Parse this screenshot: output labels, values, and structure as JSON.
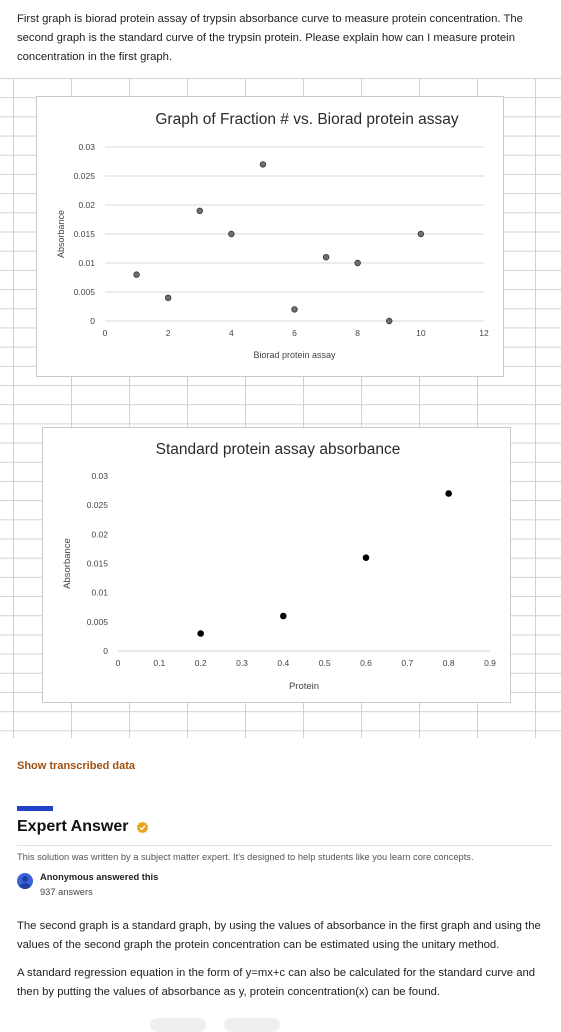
{
  "question": {
    "text": "First graph is biorad protein assay of trypsin absorbance curve to measure protein concentration. The second graph is the standard curve of the trypsin protein. Please explain how can I measure protein concentration in the first graph."
  },
  "chart_data": [
    {
      "type": "scatter",
      "title": "Graph of Fraction # vs. Biorad protein assay",
      "xlabel": "Biorad protein assay",
      "ylabel": "Absorbance",
      "xlim": [
        0,
        12
      ],
      "ylim": [
        0,
        0.03
      ],
      "x_ticks": [
        "0",
        "2",
        "4",
        "6",
        "8",
        "10",
        "12"
      ],
      "y_ticks": [
        "0",
        "0.005",
        "0.01",
        "0.015",
        "0.02",
        "0.025",
        "0.03"
      ],
      "grid": true,
      "marker_color": "#707070",
      "points": [
        {
          "x": 1,
          "y": 0.008
        },
        {
          "x": 2,
          "y": 0.004
        },
        {
          "x": 3,
          "y": 0.019
        },
        {
          "x": 4,
          "y": 0.015
        },
        {
          "x": 5,
          "y": 0.027
        },
        {
          "x": 6,
          "y": 0.002
        },
        {
          "x": 7,
          "y": 0.011
        },
        {
          "x": 8,
          "y": 0.01
        },
        {
          "x": 9,
          "y": 0.0
        },
        {
          "x": 10,
          "y": 0.015
        }
      ]
    },
    {
      "type": "scatter",
      "title": "Standard protein assay absorbance",
      "xlabel": "Protein",
      "ylabel": "Absorbance",
      "xlim": [
        0,
        0.9
      ],
      "ylim": [
        0,
        0.03
      ],
      "x_ticks": [
        "0",
        "0.1",
        "0.2",
        "0.3",
        "0.4",
        "0.5",
        "0.6",
        "0.7",
        "0.8",
        "0.9"
      ],
      "y_ticks": [
        "0",
        "0.005",
        "0.01",
        "0.015",
        "0.02",
        "0.025",
        "0.03"
      ],
      "grid": false,
      "marker_color": "#000000",
      "points": [
        {
          "x": 0.2,
          "y": 0.003
        },
        {
          "x": 0.4,
          "y": 0.006
        },
        {
          "x": 0.6,
          "y": 0.016
        },
        {
          "x": 0.8,
          "y": 0.027
        }
      ]
    }
  ],
  "show_transcribed": "Show transcribed data",
  "answer": {
    "heading": "Expert Answer",
    "disclaimer": "This solution was written by a subject matter expert. It's designed to help students like you learn core concepts.",
    "author": "Anonymous answered this",
    "count": "937 answers",
    "paragraph1": "The second graph is a standard graph, by using the values of absorbance in the first graph and using the values of the second graph the protein concentration can be estimated using the unitary method.",
    "paragraph2": "A standard regression equation in the form of y=mx+c can also be calculated for the standard curve and then by putting the values of absorbance as y, protein concentration(x) can be found."
  },
  "colors": {
    "link": "#a0500f",
    "accent_bar": "#2442c9",
    "avatar": "#3b62d8",
    "verified_badge": "#e8a317"
  }
}
